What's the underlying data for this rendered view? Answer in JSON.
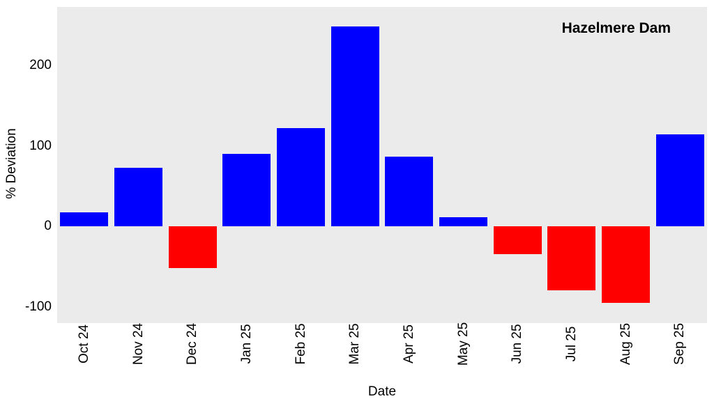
{
  "chart_data": {
    "type": "bar",
    "title": "Hazelmere Dam",
    "xlabel": "Date",
    "ylabel": "% Deviation",
    "categories": [
      "Oct 24",
      "Nov 24",
      "Dec 24",
      "Jan 25",
      "Feb 25",
      "Mar 25",
      "Apr 25",
      "May 25",
      "Jun 25",
      "Jul 25",
      "Aug 25",
      "Sep 25"
    ],
    "values": [
      18,
      73,
      -52,
      90,
      122,
      249,
      87,
      12,
      -34,
      -79,
      -95,
      115
    ],
    "yticks": [
      200,
      100,
      0,
      -100
    ],
    "ylim": [
      -120,
      273
    ],
    "grid": "off",
    "legend": "none",
    "colors": {
      "positive": "#0000ff",
      "negative": "#ff0000",
      "panel_background": "#ebebeb",
      "figure_background": "#ffffff",
      "text": "#000000"
    }
  }
}
